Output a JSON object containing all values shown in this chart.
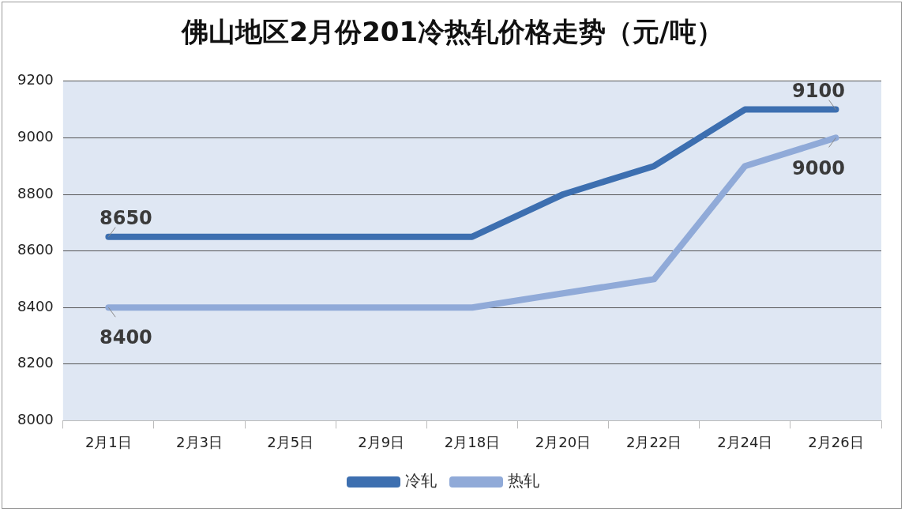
{
  "chart_data": {
    "type": "line",
    "title": "佛山地区2月份201冷热轧价格走势（元/吨）",
    "categories": [
      "2月1日",
      "2月3日",
      "2月5日",
      "2月9日",
      "2月18日",
      "2月20日",
      "2月22日",
      "2月24日",
      "2月26日"
    ],
    "series": [
      {
        "name": "冷轧",
        "color": "#3d6fb0",
        "values": [
          8650,
          8650,
          8650,
          8650,
          8650,
          8800,
          8900,
          9100,
          9100
        ],
        "value_labels": [
          "8650",
          null,
          null,
          null,
          null,
          null,
          null,
          null,
          "9100"
        ]
      },
      {
        "name": "热轧",
        "color": "#90aad8",
        "values": [
          8400,
          8400,
          8400,
          8400,
          8400,
          8450,
          8500,
          8900,
          9000
        ],
        "value_labels": [
          "8400",
          null,
          null,
          null,
          null,
          null,
          null,
          null,
          "9000"
        ]
      }
    ],
    "ylim": [
      8000,
      9200
    ],
    "yticks": [
      8000,
      8200,
      8400,
      8600,
      8800,
      9000,
      9200
    ],
    "grid": "y",
    "legend": "bottom"
  }
}
